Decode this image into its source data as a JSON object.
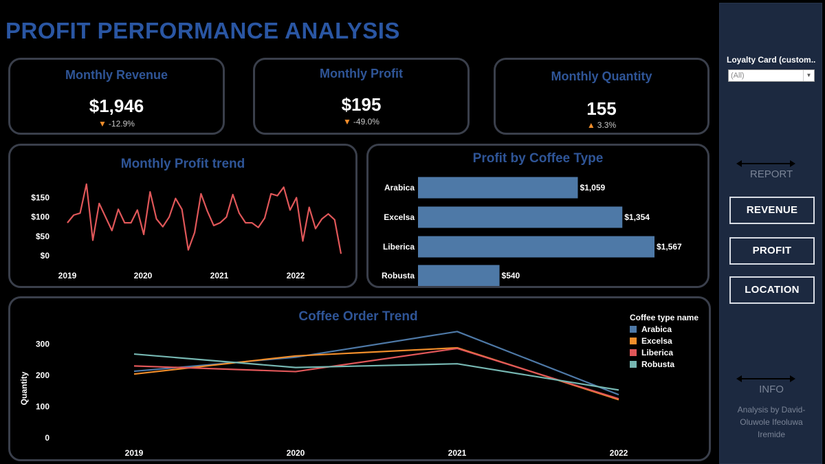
{
  "title": "PROFIT PERFORMANCE ANALYSIS",
  "kpis": {
    "revenue": {
      "label": "Monthly Revenue",
      "value": "$1,946",
      "delta": "-12.9%",
      "direction": "down"
    },
    "profit": {
      "label": "Monthly Profit",
      "value": "$195",
      "delta": "-49.0%",
      "direction": "down"
    },
    "quantity": {
      "label": "Monthly Quantity",
      "value": "155",
      "delta": "3.3%",
      "direction": "up"
    }
  },
  "colors": {
    "accent": "#2f5597",
    "card_border": "#3a3f4b",
    "profit_line": "#e05759",
    "bar": "#4e79a7",
    "arabica": "#4e79a7",
    "excelsa": "#f28e2b",
    "liberica": "#e15759",
    "robusta": "#76b7b2",
    "sidebar": "#1c2940"
  },
  "sidebar": {
    "filter_label": "Loyalty Card (custom..",
    "filter_value": "(All)",
    "report_label": "REPORT",
    "buttons": {
      "revenue": "REVENUE",
      "profit": "PROFIT",
      "location": "LOCATION"
    },
    "info_label": "INFO",
    "credit_lines": [
      "Analysis by David-",
      "Oluwole Ifeoluwa",
      "Iremide"
    ]
  },
  "chart_data": [
    {
      "type": "line",
      "title": "Monthly Profit trend",
      "x_tick_labels": [
        "2019",
        "2020",
        "2021",
        "2022"
      ],
      "y_tick_labels": [
        "$0",
        "$50",
        "$100",
        "$150"
      ],
      "ylim": [
        0,
        190
      ],
      "series": [
        {
          "values": [
            85,
            105,
            110,
            185,
            40,
            135,
            100,
            65,
            120,
            85,
            85,
            118,
            55,
            165,
            95,
            75,
            100,
            148,
            120,
            15,
            60,
            160,
            115,
            78,
            85,
            100,
            158,
            110,
            85,
            85,
            73,
            97,
            160,
            155,
            177,
            118,
            150,
            38,
            125,
            70,
            95,
            108,
            93,
            5
          ]
        }
      ]
    },
    {
      "type": "bar",
      "orientation": "horizontal",
      "title": "Profit by Coffee Type",
      "categories": [
        "Arabica",
        "Excelsa",
        "Liberica",
        "Robusta"
      ],
      "values": [
        1059,
        1354,
        1567,
        540
      ],
      "data_labels": [
        "$1,059",
        "$1,354",
        "$1,567",
        "$540"
      ]
    },
    {
      "type": "line",
      "title": "Coffee Order Trend",
      "x": [
        "2019",
        "2020",
        "2021",
        "2022"
      ],
      "y_tick_labels": [
        "0",
        "100",
        "200",
        "300"
      ],
      "ylabel": "Quantity",
      "ylim": [
        0,
        360
      ],
      "legend_title": "Coffee type name",
      "legend_position": "top-right",
      "series": [
        {
          "name": "Arabica",
          "values": [
            213,
            258,
            340,
            138
          ]
        },
        {
          "name": "Excelsa",
          "values": [
            204,
            262,
            288,
            122
          ]
        },
        {
          "name": "Liberica",
          "values": [
            230,
            212,
            286,
            125
          ]
        },
        {
          "name": "Robusta",
          "values": [
            268,
            225,
            237,
            153
          ]
        }
      ]
    }
  ]
}
